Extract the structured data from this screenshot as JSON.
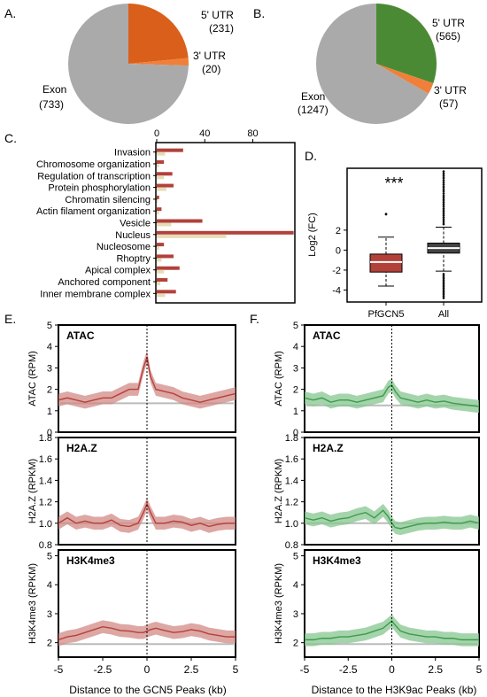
{
  "panel_labels": [
    "A.",
    "B.",
    "C.",
    "D.",
    "E.",
    "F."
  ],
  "colors": {
    "exon": "#aaaaaa",
    "utr5_A": "#d95f1a",
    "utr3": "#f07f3a",
    "utr5_B": "#4b8a34",
    "gcn5_bar": "#b2413a",
    "all_bar": "#e6dcb6",
    "gcn5_line": "#b5403b",
    "gcn5_band": "#d28a85",
    "h3k9_line": "#3d9a4a",
    "h3k9_band": "#86c58f",
    "bg_line": "#bbbbbb"
  },
  "chart_data": [
    {
      "id": "A",
      "type": "pie",
      "slices": [
        {
          "label": "5' UTR",
          "count": "(231)",
          "value": 231,
          "color": "#d95f1a"
        },
        {
          "label": "3' UTR",
          "count": "(20)",
          "value": 20,
          "color": "#f07f3a"
        },
        {
          "label": "Exon",
          "count": "(733)",
          "value": 733,
          "color": "#aaaaaa"
        }
      ]
    },
    {
      "id": "B",
      "type": "pie",
      "slices": [
        {
          "label": "5' UTR",
          "count": "(565)",
          "value": 565,
          "color": "#4b8a34"
        },
        {
          "label": "3' UTR",
          "count": "(57)",
          "value": 57,
          "color": "#f07f3a"
        },
        {
          "label": "Exon",
          "count": "(1247)",
          "value": 1247,
          "color": "#aaaaaa"
        }
      ]
    },
    {
      "id": "C",
      "type": "bar",
      "orientation": "horizontal",
      "categories": [
        "Invasion",
        "Chromosome organization",
        "Regulation of transcription",
        "Protein phosphorylation",
        "Chromatin silencing",
        "Actin filament organization",
        "Vesicle",
        "Nucleus",
        "Nucleosome",
        "Rhoptry",
        "Apical complex",
        "Anchored component",
        "Inner membrane complex"
      ],
      "series": [
        {
          "values": [
            22,
            6,
            13,
            14,
            2,
            4,
            38,
            114,
            6,
            14,
            19,
            9,
            16
          ]
        },
        {
          "values": [
            7,
            2,
            6,
            8,
            1,
            2,
            12,
            58,
            2,
            4,
            6,
            3,
            7
          ]
        }
      ],
      "xticks": [
        "0",
        "40",
        "80"
      ],
      "xlim": [
        0,
        115
      ]
    },
    {
      "id": "D",
      "type": "box",
      "ylabel": "Log2 (FC)",
      "yticks": [
        "2",
        "0",
        "-2",
        "-4"
      ],
      "ylim": [
        -5.2,
        8.2
      ],
      "significance": "***",
      "groups": [
        {
          "label": "PfGCN5",
          "whisker_low": -3.6,
          "q1": -2.2,
          "median": -1.2,
          "q3": -0.4,
          "whisker_high": 1.3,
          "color": "#b2413a"
        },
        {
          "label": "All",
          "whisker_low": -2.1,
          "q1": -0.3,
          "median": 0.2,
          "q3": 0.7,
          "whisker_high": 2.3,
          "color": "#444444"
        }
      ]
    },
    {
      "id": "E",
      "type": "line",
      "xlabel": "Distance to the GCN5 Peaks (kb)",
      "xticks": [
        "-5",
        "-2.5",
        "0",
        "2.5",
        "5"
      ],
      "panels": [
        {
          "title": "ATAC",
          "ylabel": "ATAC (RPM)",
          "yticks": [
            "0",
            "1",
            "2",
            "3",
            "4",
            "5"
          ],
          "ylim": [
            0,
            5
          ],
          "x": [
            -5,
            -4.5,
            -4,
            -3.5,
            -3,
            -2.5,
            -2,
            -1.5,
            -1,
            -0.5,
            -0.2,
            0,
            0.2,
            0.5,
            1,
            1.5,
            2,
            2.5,
            3,
            3.5,
            4,
            4.5,
            5
          ],
          "y": [
            1.5,
            1.6,
            1.5,
            1.4,
            1.5,
            1.6,
            1.6,
            1.8,
            2.0,
            2.0,
            3.0,
            3.5,
            2.6,
            2.0,
            1.9,
            1.8,
            1.6,
            1.5,
            1.4,
            1.5,
            1.6,
            1.7,
            1.8
          ],
          "bg": 1.35
        },
        {
          "title": "H2A.Z",
          "ylabel": "H2A.Z (RPKM)",
          "yticks": [
            "0.8",
            "1.0",
            "1.2",
            "1.4",
            "1.6",
            "1.8"
          ],
          "ylim": [
            0.8,
            1.8
          ],
          "x": [
            -5,
            -4.5,
            -4,
            -3.5,
            -3,
            -2.5,
            -2,
            -1.5,
            -1,
            -0.5,
            -0.2,
            0,
            0.2,
            0.5,
            1,
            1.5,
            2,
            2.5,
            3,
            3.5,
            4,
            4.5,
            5
          ],
          "y": [
            1.0,
            1.05,
            1.0,
            1.02,
            1.0,
            1.0,
            1.03,
            0.98,
            0.97,
            1.0,
            1.1,
            1.18,
            1.1,
            1.0,
            1.0,
            1.02,
            1.01,
            0.98,
            1.0,
            0.97,
            0.99,
            1.0,
            1.0
          ],
          "bg": 1.0
        },
        {
          "title": "H3K4me3",
          "ylabel": "H3K4me3 (RPKM)",
          "yticks": [
            "2",
            "3",
            "4",
            "5"
          ],
          "ylim": [
            1.5,
            5.2
          ],
          "x": [
            -5,
            -4.5,
            -4,
            -3.5,
            -3,
            -2.5,
            -2,
            -1.5,
            -1,
            -0.5,
            -0.2,
            0,
            0.2,
            0.5,
            1,
            1.5,
            2,
            2.5,
            3,
            3.5,
            4,
            4.5,
            5
          ],
          "y": [
            2.1,
            2.2,
            2.25,
            2.35,
            2.45,
            2.55,
            2.5,
            2.42,
            2.4,
            2.35,
            2.35,
            2.4,
            2.45,
            2.5,
            2.42,
            2.35,
            2.38,
            2.45,
            2.4,
            2.3,
            2.25,
            2.2,
            2.2
          ],
          "bg": 1.95
        }
      ]
    },
    {
      "id": "F",
      "type": "line",
      "xlabel": "Distance to the H3K9ac Peaks (kb)",
      "xticks": [
        "-5",
        "-2.5",
        "0",
        "2.5",
        "5"
      ],
      "panels": [
        {
          "title": "ATAC",
          "ylabel": "ATAC (RPM)",
          "yticks": [
            "0",
            "1",
            "2",
            "3",
            "4",
            "5"
          ],
          "ylim": [
            0,
            5
          ],
          "x": [
            -5,
            -4.5,
            -4,
            -3.5,
            -3,
            -2.5,
            -2,
            -1.5,
            -1,
            -0.5,
            -0.2,
            0,
            0.2,
            0.5,
            1,
            1.5,
            2,
            2.5,
            3,
            3.5,
            4,
            4.5,
            5
          ],
          "y": [
            1.6,
            1.5,
            1.6,
            1.4,
            1.5,
            1.5,
            1.4,
            1.5,
            1.6,
            1.7,
            2.1,
            2.2,
            1.9,
            1.6,
            1.5,
            1.4,
            1.5,
            1.4,
            1.45,
            1.35,
            1.3,
            1.25,
            1.2
          ],
          "bg": 1.25
        },
        {
          "title": "H2A.Z",
          "ylabel": "H2A.Z (RPKM)",
          "yticks": [
            "0.8",
            "1.0",
            "1.2",
            "1.4",
            "1.6",
            "1.8"
          ],
          "ylim": [
            0.8,
            1.8
          ],
          "x": [
            -5,
            -4.5,
            -4,
            -3.5,
            -3,
            -2.5,
            -2,
            -1.5,
            -1,
            -0.5,
            -0.2,
            0,
            0.2,
            0.5,
            1,
            1.5,
            2,
            2.5,
            3,
            3.5,
            4,
            4.5,
            5
          ],
          "y": [
            1.05,
            1.03,
            1.05,
            1.02,
            1.04,
            1.05,
            1.08,
            1.1,
            1.05,
            1.12,
            1.06,
            1.0,
            0.96,
            0.95,
            0.97,
            0.99,
            1.0,
            1.0,
            1.01,
            1.0,
            1.0,
            1.02,
            1.0
          ],
          "bg": 1.0
        },
        {
          "title": "H3K4me3",
          "ylabel": "H3K4me3 (RPKM)",
          "yticks": [
            "2",
            "3",
            "4",
            "5"
          ],
          "ylim": [
            1.5,
            5.2
          ],
          "x": [
            -5,
            -4.5,
            -4,
            -3.5,
            -3,
            -2.5,
            -2,
            -1.5,
            -1,
            -0.5,
            -0.2,
            0,
            0.2,
            0.5,
            1,
            1.5,
            2,
            2.5,
            3,
            3.5,
            4,
            4.5,
            5
          ],
          "y": [
            2.1,
            2.1,
            2.15,
            2.15,
            2.2,
            2.2,
            2.25,
            2.3,
            2.4,
            2.5,
            2.65,
            2.75,
            2.6,
            2.4,
            2.3,
            2.25,
            2.2,
            2.2,
            2.15,
            2.15,
            2.1,
            2.1,
            2.1
          ],
          "bg": 1.95
        }
      ]
    }
  ]
}
